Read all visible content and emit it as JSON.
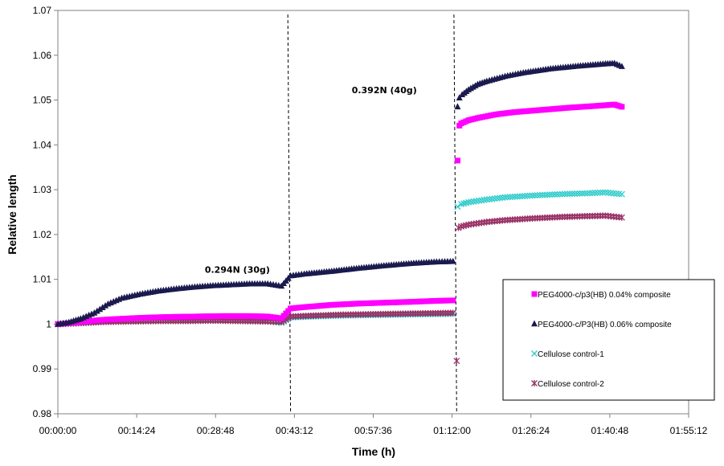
{
  "chart_data": {
    "type": "scatter",
    "title": "",
    "xlabel": "Time (h)",
    "ylabel": "Relative length",
    "x_unit": "seconds",
    "xlim": [
      0,
      6912
    ],
    "ylim": [
      0.98,
      1.07
    ],
    "x_tick_values": [
      0,
      864,
      1728,
      2592,
      3456,
      4320,
      5184,
      6048,
      6912
    ],
    "x_tick_labels": [
      "00:00:00",
      "00:14:24",
      "00:28:48",
      "00:43:12",
      "00:57:36",
      "01:12:00",
      "01:26:24",
      "01:40:48",
      "01:55:12"
    ],
    "y_ticks": [
      0.98,
      0.99,
      1,
      1.01,
      1.02,
      1.03,
      1.04,
      1.05,
      1.06,
      1.07
    ],
    "y_tick_labels": [
      "0.98",
      "0.99",
      "1",
      "1.01",
      "1.02",
      "1.03",
      "1.04",
      "1.05",
      "1.06",
      "1.07"
    ],
    "load_changes_x": [
      2520,
      2550,
      4340,
      4370
    ],
    "annotations": [
      {
        "text": "0.294N  (30g)",
        "x": 1610,
        "y": 1.0115
      },
      {
        "text": "0.392N  (40g)",
        "x": 3220,
        "y": 1.0515
      }
    ],
    "legend": {
      "placement": "right",
      "entries": [
        "PEG4000-c/p3(HB) 0.04% composite",
        "PEG4000-c/P3(HB) 0.06%  composite",
        "Cellulose control-1",
        "Cellulose control-2"
      ]
    },
    "series": [
      {
        "name": "PEG4000-c/p3(HB) 0.04% composite",
        "marker": "square",
        "color": "#ff00ff",
        "points": [
          [
            0,
            1.0
          ],
          [
            120,
            1.0002
          ],
          [
            300,
            1.0006
          ],
          [
            450,
            1.0009
          ],
          [
            600,
            1.0011
          ],
          [
            900,
            1.0014
          ],
          [
            1200,
            1.0016
          ],
          [
            1500,
            1.0017
          ],
          [
            1800,
            1.0018
          ],
          [
            2100,
            1.0018
          ],
          [
            2300,
            1.0017
          ],
          [
            2450,
            1.0013
          ],
          [
            2550,
            1.0035
          ],
          [
            2700,
            1.0038
          ],
          [
            3000,
            1.0043
          ],
          [
            3300,
            1.0046
          ],
          [
            3600,
            1.0048
          ],
          [
            3900,
            1.005
          ],
          [
            4150,
            1.0052
          ],
          [
            4330,
            1.0053
          ],
          [
            4380,
            1.0365
          ],
          [
            4400,
            1.0443
          ],
          [
            4420,
            1.0448
          ],
          [
            4500,
            1.0455
          ],
          [
            4600,
            1.046
          ],
          [
            4800,
            1.0468
          ],
          [
            5000,
            1.0473
          ],
          [
            5300,
            1.0478
          ],
          [
            5600,
            1.0483
          ],
          [
            5900,
            1.0487
          ],
          [
            6100,
            1.049
          ],
          [
            6180,
            1.0485
          ]
        ]
      },
      {
        "name": "PEG4000-c/P3(HB) 0.06%  composite",
        "marker": "triangle",
        "color": "#1a1a4e",
        "points": [
          [
            0,
            1.0
          ],
          [
            120,
            1.0004
          ],
          [
            250,
            1.0012
          ],
          [
            400,
            1.0025
          ],
          [
            550,
            1.0045
          ],
          [
            700,
            1.0058
          ],
          [
            900,
            1.0067
          ],
          [
            1100,
            1.0074
          ],
          [
            1300,
            1.0079
          ],
          [
            1500,
            1.0083
          ],
          [
            1700,
            1.0086
          ],
          [
            1900,
            1.0088
          ],
          [
            2100,
            1.009
          ],
          [
            2300,
            1.009
          ],
          [
            2450,
            1.0085
          ],
          [
            2550,
            1.0108
          ],
          [
            2700,
            1.0112
          ],
          [
            3000,
            1.0118
          ],
          [
            3300,
            1.0125
          ],
          [
            3600,
            1.0131
          ],
          [
            3900,
            1.0136
          ],
          [
            4150,
            1.0139
          ],
          [
            4330,
            1.014
          ],
          [
            4380,
            1.0485
          ],
          [
            4400,
            1.0505
          ],
          [
            4430,
            1.0512
          ],
          [
            4500,
            1.0523
          ],
          [
            4600,
            1.0535
          ],
          [
            4700,
            1.0542
          ],
          [
            4900,
            1.0553
          ],
          [
            5100,
            1.0561
          ],
          [
            5400,
            1.057
          ],
          [
            5700,
            1.0576
          ],
          [
            6000,
            1.0581
          ],
          [
            6100,
            1.0582
          ],
          [
            6180,
            1.0575
          ]
        ]
      },
      {
        "name": "Cellulose control-1",
        "marker": "x",
        "color": "#33cccc",
        "points": [
          [
            0,
            1.0
          ],
          [
            200,
            1.0002
          ],
          [
            500,
            1.0005
          ],
          [
            800,
            1.0007
          ],
          [
            1100,
            1.0007
          ],
          [
            1400,
            1.0008
          ],
          [
            1700,
            1.0008
          ],
          [
            2000,
            1.0008
          ],
          [
            2300,
            1.0007
          ],
          [
            2450,
            1.0003
          ],
          [
            2550,
            1.0015
          ],
          [
            2800,
            1.0017
          ],
          [
            3100,
            1.0019
          ],
          [
            3400,
            1.002
          ],
          [
            3700,
            1.0021
          ],
          [
            4000,
            1.0022
          ],
          [
            4330,
            1.0023
          ],
          [
            4380,
            1.0262
          ],
          [
            4420,
            1.0268
          ],
          [
            4500,
            1.0272
          ],
          [
            4700,
            1.0278
          ],
          [
            4900,
            1.0283
          ],
          [
            5200,
            1.0287
          ],
          [
            5500,
            1.029
          ],
          [
            5800,
            1.0292
          ],
          [
            6000,
            1.0294
          ],
          [
            6180,
            1.029
          ]
        ]
      },
      {
        "name": "Cellulose control-2",
        "marker": "star",
        "color": "#993366",
        "points": [
          [
            0,
            1.0
          ],
          [
            200,
            1.0002
          ],
          [
            500,
            1.0005
          ],
          [
            800,
            1.0006
          ],
          [
            1100,
            1.0007
          ],
          [
            1400,
            1.0007
          ],
          [
            1700,
            1.0008
          ],
          [
            2000,
            1.0007
          ],
          [
            2300,
            1.0006
          ],
          [
            2450,
            1.0005
          ],
          [
            2550,
            1.0017
          ],
          [
            2800,
            1.0019
          ],
          [
            3100,
            1.0021
          ],
          [
            3400,
            1.0022
          ],
          [
            3700,
            1.0023
          ],
          [
            4000,
            1.0024
          ],
          [
            4330,
            1.0025
          ],
          [
            4370,
            0.9918
          ],
          [
            4390,
            1.0215
          ],
          [
            4420,
            1.0218
          ],
          [
            4500,
            1.0222
          ],
          [
            4700,
            1.0228
          ],
          [
            4900,
            1.0232
          ],
          [
            5200,
            1.0236
          ],
          [
            5500,
            1.0239
          ],
          [
            5800,
            1.0241
          ],
          [
            6000,
            1.0242
          ],
          [
            6180,
            1.0238
          ]
        ]
      }
    ]
  }
}
